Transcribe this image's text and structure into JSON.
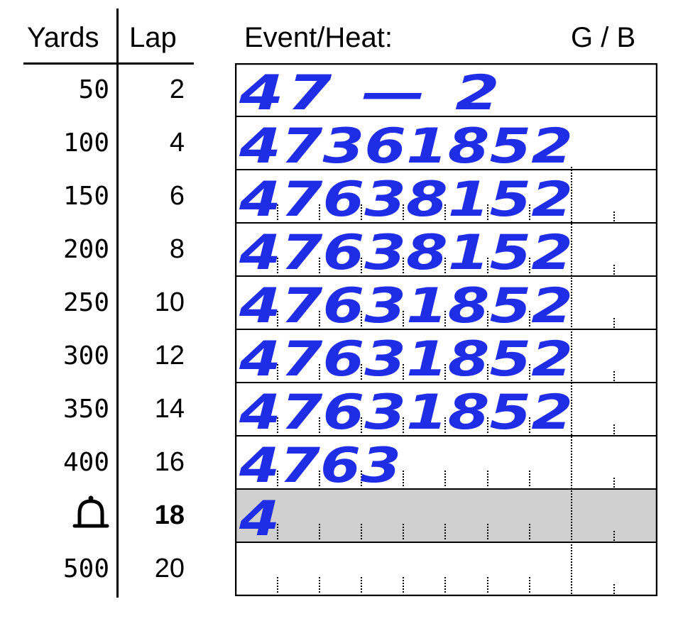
{
  "headers": {
    "yards": "Yards",
    "lap": "Lap",
    "event_heat": "Event/Heat:",
    "gender": "G / B"
  },
  "rows": [
    {
      "yards": "50",
      "lap": "2",
      "entry": "47 — 2",
      "highlighted": false
    },
    {
      "yards": "100",
      "lap": "4",
      "entry": "47361852",
      "highlighted": false
    },
    {
      "yards": "150",
      "lap": "6",
      "entry": "47638152",
      "highlighted": false
    },
    {
      "yards": "200",
      "lap": "8",
      "entry": "47638152",
      "highlighted": false
    },
    {
      "yards": "250",
      "lap": "10",
      "entry": "47631852",
      "highlighted": false
    },
    {
      "yards": "300",
      "lap": "12",
      "entry": "47631852",
      "highlighted": false
    },
    {
      "yards": "350",
      "lap": "14",
      "entry": "47631852",
      "highlighted": false
    },
    {
      "yards": "400",
      "lap": "16",
      "entry": "4763",
      "highlighted": false
    },
    {
      "yards": "",
      "yards_icon": "bell-icon",
      "lap": "18",
      "lap_bold": true,
      "entry": "4",
      "highlighted": true
    },
    {
      "yards": "500",
      "lap": "20",
      "entry": "",
      "highlighted": false
    }
  ],
  "colors": {
    "ink": "#1f2ee6",
    "highlight_row": "#d0d0d0",
    "line": "#000000"
  }
}
